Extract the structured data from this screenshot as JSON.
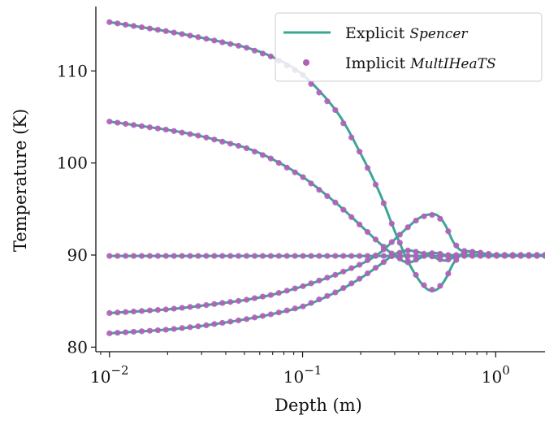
{
  "chart_data": {
    "type": "line",
    "xlabel": "Depth (m)",
    "ylabel": "Temperature (K)",
    "xscale": "log",
    "xlim": [
      0.0085,
      1.8
    ],
    "ylim": [
      79.5,
      117
    ],
    "x_ticks": [
      {
        "value": 0.01,
        "base": "10",
        "exp": "−2"
      },
      {
        "value": 0.1,
        "base": "10",
        "exp": "−1"
      },
      {
        "value": 1,
        "base": "10",
        "exp": "0"
      }
    ],
    "y_ticks": [
      80,
      90,
      100,
      110
    ],
    "legend": {
      "position": "top-right",
      "entries": [
        {
          "prefix": "Explicit",
          "name": "Spencer",
          "style": "line",
          "color": "#3aa796"
        },
        {
          "prefix": "Implicit",
          "name": "MultIHeaTS",
          "style": "dots",
          "color": "#b060b8"
        }
      ]
    },
    "series": [
      {
        "x": [
          0.01,
          0.02,
          0.03,
          0.05,
          0.07,
          0.1,
          0.15,
          0.2,
          0.25,
          0.3,
          0.35,
          0.4,
          0.45,
          0.5,
          0.55,
          0.6,
          0.65,
          0.7,
          0.8,
          1.0,
          1.5,
          1.8
        ],
        "y": [
          115.3,
          114.3,
          113.6,
          112.6,
          111.5,
          109.6,
          105.6,
          101.0,
          96.8,
          92.6,
          89.4,
          87.3,
          86.2,
          86.3,
          87.4,
          89.0,
          89.9,
          90.4,
          90.3,
          90.0,
          90.0,
          90.0
        ]
      },
      {
        "x": [
          0.01,
          0.02,
          0.03,
          0.05,
          0.07,
          0.1,
          0.15,
          0.2,
          0.25,
          0.3,
          0.35,
          0.4,
          0.45,
          0.5,
          0.55,
          0.6,
          0.65,
          0.7,
          0.8,
          1.0,
          1.5,
          1.8
        ],
        "y": [
          104.5,
          103.6,
          102.9,
          101.7,
          100.4,
          98.5,
          95.6,
          93.2,
          91.3,
          89.9,
          89.2,
          89.6,
          90.2,
          90.2,
          90.0,
          90.0,
          90.0,
          90.0,
          90.0,
          90.0,
          90.0,
          90.0
        ]
      },
      {
        "x": [
          0.01,
          0.1,
          1.0,
          1.8
        ],
        "y": [
          89.9,
          89.9,
          89.9,
          89.9
        ]
      },
      {
        "x": [
          0.01,
          0.02,
          0.03,
          0.05,
          0.07,
          0.1,
          0.15,
          0.2,
          0.25,
          0.3,
          0.35,
          0.4,
          0.45,
          0.5,
          0.55,
          0.6,
          0.65,
          0.7,
          0.8,
          1.0,
          1.5,
          1.8
        ],
        "y": [
          83.7,
          84.1,
          84.5,
          85.1,
          85.7,
          86.6,
          87.9,
          89.0,
          90.2,
          91.7,
          93.0,
          94.0,
          94.4,
          94.3,
          93.2,
          91.5,
          90.6,
          90.4,
          90.3,
          90.0,
          90.0,
          90.0
        ]
      },
      {
        "x": [
          0.01,
          0.02,
          0.03,
          0.05,
          0.07,
          0.1,
          0.15,
          0.2,
          0.25,
          0.3,
          0.35,
          0.4,
          0.45,
          0.5,
          0.55,
          0.6,
          0.65,
          0.7,
          0.8,
          1.0,
          1.5,
          1.8
        ],
        "y": [
          81.5,
          81.9,
          82.3,
          83.0,
          83.6,
          84.4,
          86.0,
          87.5,
          88.9,
          90.1,
          90.5,
          90.3,
          90.0,
          89.6,
          89.4,
          89.7,
          89.9,
          90.0,
          90.0,
          90.0,
          90.0,
          90.0
        ]
      }
    ]
  }
}
